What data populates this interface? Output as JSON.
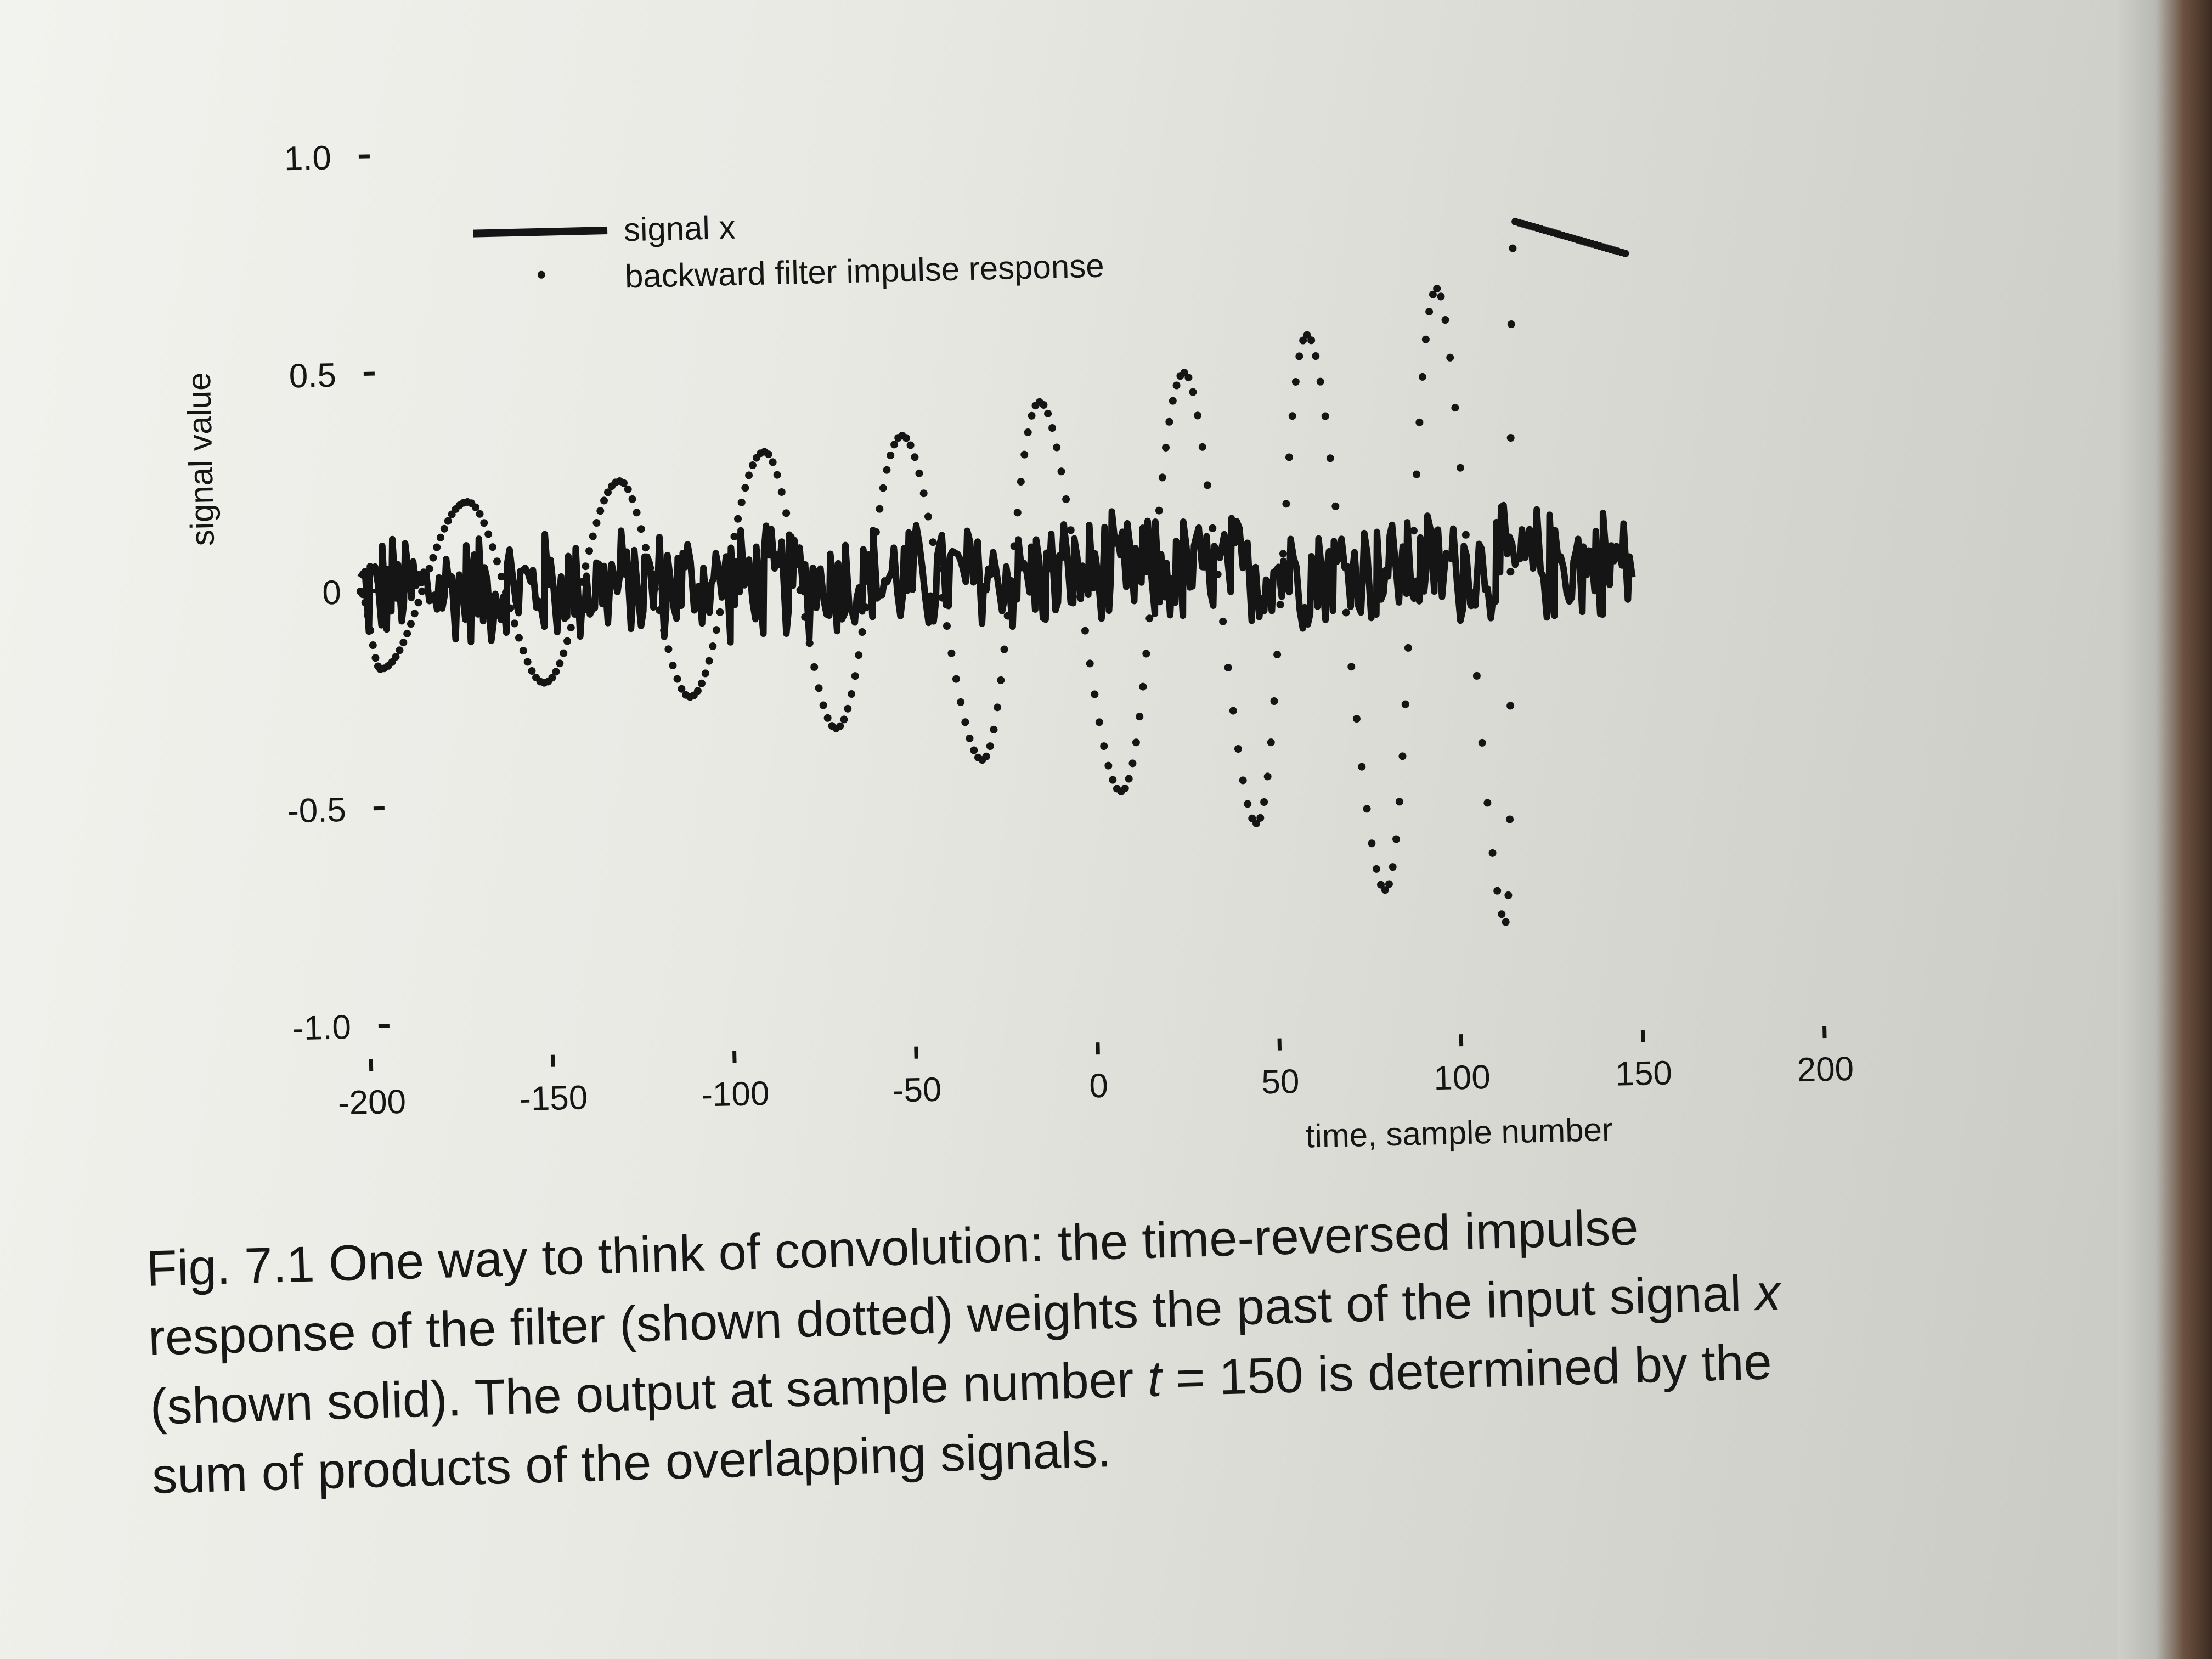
{
  "chart_data": {
    "type": "line",
    "title": "",
    "xlabel": "time, sample number",
    "ylabel": "signal value",
    "xlim": [
      -200,
      200
    ],
    "ylim": [
      -1.0,
      1.0
    ],
    "x_ticks": [
      "-200",
      "-150",
      "-100",
      "-50",
      "0",
      "50",
      "100",
      "150",
      "200"
    ],
    "y_ticks": [
      "1.0",
      "0.5",
      "0",
      "-0.5",
      "-1.0"
    ],
    "grid": false,
    "legend_position": "top-left",
    "series": [
      {
        "name": "signal x",
        "style": "solid-thick",
        "description": "noisy signal fluctuating around 0 between about -0.15 and +0.15",
        "x_start": -200,
        "x_end": 150,
        "amplitude": 0.15
      },
      {
        "name": "backward filter impulse response",
        "style": "dotted",
        "x_start": -200,
        "x_end": 150,
        "points": [
          {
            "x": -195,
            "y": -0.18
          },
          {
            "x": -170,
            "y": 0.2
          },
          {
            "x": -150,
            "y": -0.22
          },
          {
            "x": -128,
            "y": 0.24
          },
          {
            "x": -110,
            "y": -0.26
          },
          {
            "x": -88,
            "y": 0.3
          },
          {
            "x": -70,
            "y": -0.34
          },
          {
            "x": -50,
            "y": 0.33
          },
          {
            "x": -30,
            "y": -0.42
          },
          {
            "x": -12,
            "y": 0.4
          },
          {
            "x": 8,
            "y": -0.5
          },
          {
            "x": 28,
            "y": 0.46
          },
          {
            "x": 45,
            "y": -0.58
          },
          {
            "x": 62,
            "y": 0.54
          },
          {
            "x": 80,
            "y": -0.74
          },
          {
            "x": 98,
            "y": 0.64
          },
          {
            "x": 113,
            "y": -0.82
          },
          {
            "x": 120,
            "y": 0.79
          }
        ]
      }
    ]
  },
  "caption": {
    "fig_label": "Fig. 7.1",
    "line1_text": "One way to think of convolution: the time-reversed impulse",
    "line2_text": "response of the filter (shown dotted) weights the past of the input signal",
    "line2_math": "x",
    "line3_text_a": "(shown solid). The output at sample number",
    "line3_math": "t",
    "line3_text_b": "= 150 is determined by the",
    "line4_text": "sum of products of the overlapping signals."
  },
  "colors": {
    "ink": "#151515",
    "paper": "#ececE8"
  }
}
